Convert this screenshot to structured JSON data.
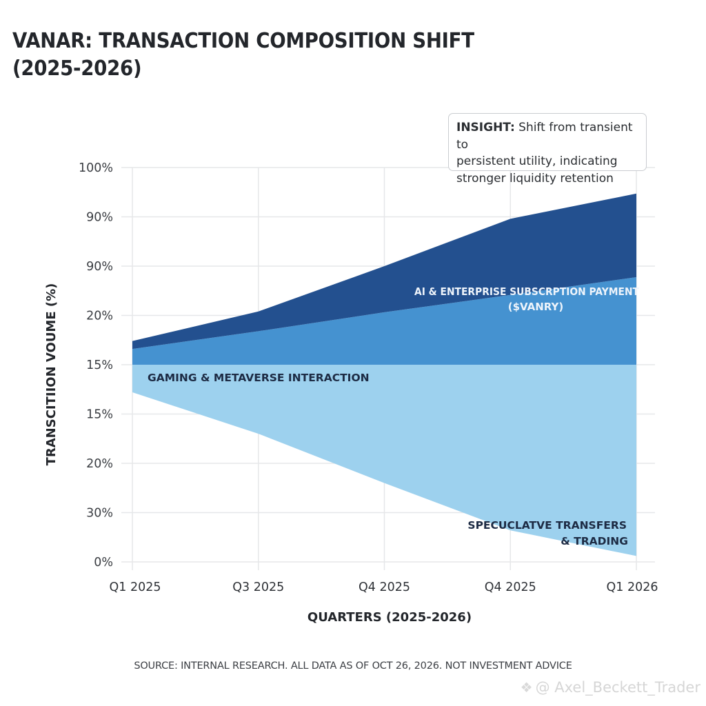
{
  "header": {
    "title_line1": "VANAR: TRANSACTION COMPOSITION SHIFT",
    "title_line2": "(2025-2026)"
  },
  "insight": {
    "label": "INSIGHT:",
    "text_line1": " Shift from transient to",
    "text_line2": "persistent utility, indicating",
    "text_line3": "stronger liquidity retention"
  },
  "footer": {
    "source": "SOURCE: INTERNAL RESEARCH. ALL DATA AS OF OCT 26, 2026. NOT INVESTMENT ADVICE",
    "watermark": "@ Axel_Beckett_Trader",
    "watermark_icon": "diamond-logo-icon"
  },
  "chart_data": {
    "type": "area",
    "title": "VANAR: TRANSACTION COMPOSITION SHIFT (2025-2026)",
    "xlabel": "QUARTERS (2025-2026)",
    "ylabel": "TRANSCITIION VOUME (%)",
    "categories": [
      "Q1 2025",
      "Q3 2025",
      "Q4 2025",
      "Q4 2025",
      "Q1 2026"
    ],
    "ytick_labels": [
      "100%",
      "90%",
      "90%",
      "20%",
      "15%",
      "15%",
      "20%",
      "30%",
      "0%"
    ],
    "ylim": [
      0,
      100
    ],
    "grid": true,
    "legend": "none (inline labels)",
    "series": [
      {
        "name": "SPECUCLATVE TRANSFERS & TRADING",
        "label_line1": "SPECUCLATVE TRANSFERS",
        "label_line2": "& TRADING",
        "color": "#9dd1ee",
        "lower": [
          43,
          32.5,
          20,
          8,
          1.5
        ],
        "upper": [
          50,
          50,
          50,
          50,
          50
        ]
      },
      {
        "name": "GAMING & METAVERSE INTERACTION",
        "label_line1": "GAMING & METAVERSE INTERACTION",
        "color": "#4592d0",
        "lower": [
          50,
          50,
          50,
          50,
          50
        ],
        "upper": [
          54,
          58.5,
          63.3,
          67.7,
          72.2
        ]
      },
      {
        "name": "AI & ENTERPRISE SUBSCRPTION PAYMENT ($VANRY)",
        "label_line1": "AI & ENTERPRISE SUBSCRPTION PAYMENT",
        "label_line2": "($VANRY)",
        "color": "#23508f",
        "lower": [
          54,
          58.5,
          63.3,
          67.7,
          72.2
        ],
        "upper": [
          56,
          63.5,
          75,
          87,
          93.4
        ]
      }
    ],
    "colors": {
      "grid": "#e6e7e9",
      "text": "#23262b"
    }
  }
}
